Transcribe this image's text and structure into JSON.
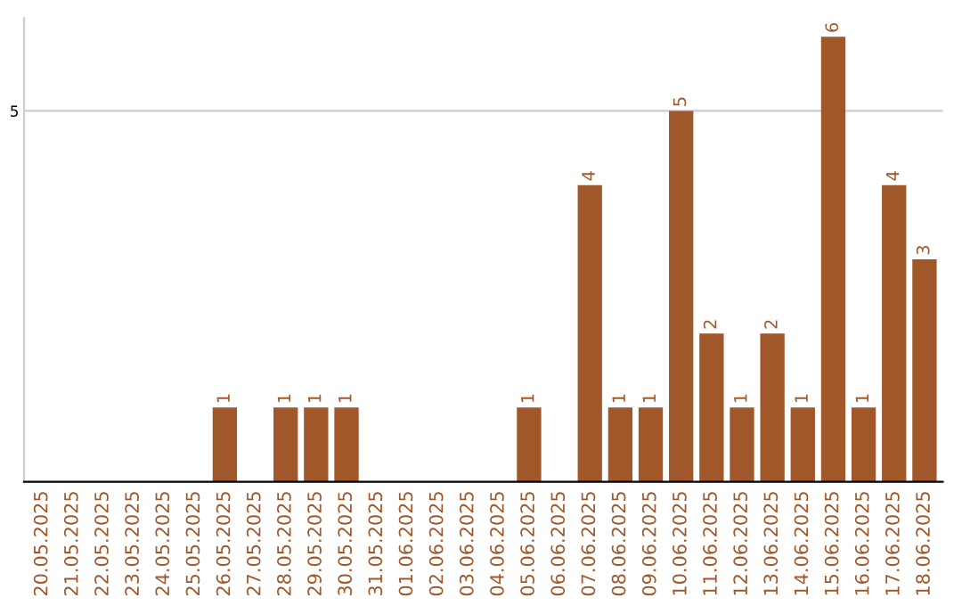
{
  "chart_data": {
    "type": "bar",
    "categories": [
      "20.05.2025",
      "21.05.2025",
      "22.05.2025",
      "23.05.2025",
      "24.05.2025",
      "25.05.2025",
      "26.05.2025",
      "27.05.2025",
      "28.05.2025",
      "29.05.2025",
      "30.05.2025",
      "31.05.2025",
      "01.06.2025",
      "02.06.2025",
      "03.06.2025",
      "04.06.2025",
      "05.06.2025",
      "06.06.2025",
      "07.06.2025",
      "08.06.2025",
      "09.06.2025",
      "10.06.2025",
      "11.06.2025",
      "12.06.2025",
      "13.06.2025",
      "14.06.2025",
      "15.06.2025",
      "16.06.2025",
      "17.06.2025",
      "18.06.2025"
    ],
    "values": [
      0,
      0,
      0,
      0,
      0,
      0,
      1,
      0,
      1,
      1,
      1,
      0,
      0,
      0,
      0,
      0,
      1,
      0,
      4,
      1,
      1,
      5,
      2,
      1,
      2,
      1,
      6,
      1,
      4,
      3
    ],
    "value_labels": [
      null,
      null,
      null,
      null,
      null,
      null,
      "1",
      null,
      "1",
      "1",
      "1",
      null,
      null,
      null,
      null,
      null,
      "1",
      null,
      "4",
      "1",
      "1",
      "5",
      "2",
      "1",
      "2",
      "1",
      "6",
      "1",
      "4",
      "3"
    ],
    "color": "#a0572a",
    "ylim": [
      0,
      6.25
    ],
    "yticks": [
      5
    ],
    "grid": "y"
  }
}
